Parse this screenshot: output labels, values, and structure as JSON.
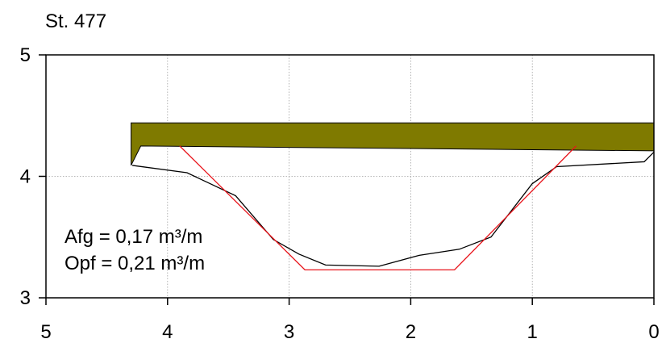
{
  "chart_data": {
    "type": "line",
    "title": "St. 477",
    "xlim": [
      5,
      0
    ],
    "ylim": [
      3,
      5
    ],
    "x_ticks": [
      5,
      4,
      3,
      2,
      1,
      0
    ],
    "y_ticks": [
      5,
      4,
      3
    ],
    "x_tick_labels": [
      "5",
      "4",
      "3",
      "2",
      "1",
      "0"
    ],
    "y_tick_labels": [
      "5",
      "4",
      "3"
    ],
    "grid": true,
    "series": [
      {
        "role": "terrain-profile",
        "color": "#000000",
        "x": [
          4.29,
          3.84,
          3.44,
          3.13,
          2.92,
          2.7,
          2.26,
          1.93,
          1.6,
          1.34,
          1.0,
          0.8,
          0.08,
          0.0
        ],
        "y": [
          4.09,
          4.03,
          3.84,
          3.48,
          3.36,
          3.27,
          3.26,
          3.35,
          3.4,
          3.5,
          3.94,
          4.08,
          4.12,
          4.2
        ]
      },
      {
        "role": "design-profile",
        "color": "#e8141b",
        "x": [
          3.9,
          2.87,
          1.64,
          0.64
        ],
        "y": [
          4.25,
          3.23,
          3.23,
          4.25
        ]
      }
    ],
    "deck": {
      "color": "#7f7a00",
      "x_left": 4.3,
      "x_right": 0.0,
      "top_y": 4.44,
      "bottom_left_y": 4.25,
      "bottom_right_y": 4.21,
      "left_bottom_y": 4.09
    },
    "annotations": [
      "Afg = 0,17 m³/m",
      "Opf = 0,21 m³/m"
    ]
  }
}
